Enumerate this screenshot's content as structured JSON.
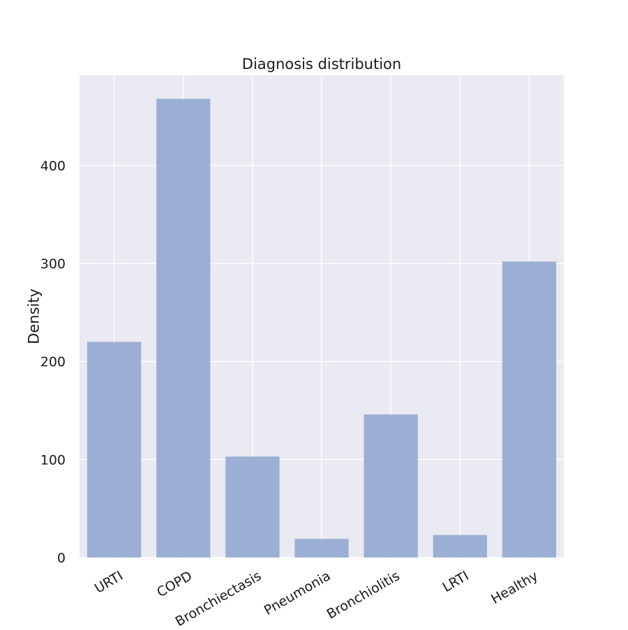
{
  "chart_data": {
    "type": "bar",
    "title": "Diagnosis distribution",
    "xlabel": "",
    "ylabel": "Density",
    "categories": [
      "URTI",
      "COPD",
      "Bronchiectasis",
      "Pneumonia",
      "Bronchiolitis",
      "LRTI",
      "Healthy"
    ],
    "values": [
      220,
      468,
      103,
      19,
      146,
      23,
      302
    ],
    "ylim": [
      0,
      492
    ],
    "yticks": [
      "0",
      "100",
      "200",
      "300",
      "400"
    ],
    "grid": true,
    "colors": {
      "bar": "#8da5cf",
      "plot_background": "#eaeaf2",
      "grid": "#ffffff"
    }
  }
}
